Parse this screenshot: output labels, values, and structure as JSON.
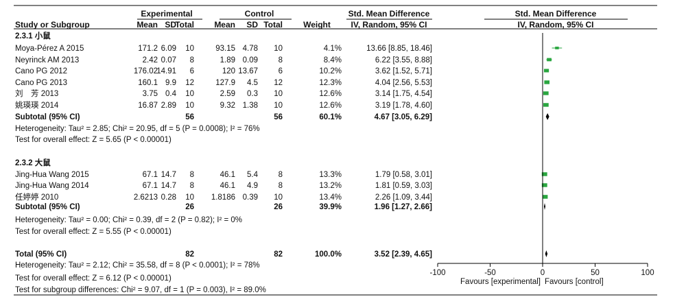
{
  "header": {
    "experimental": "Experimental",
    "control": "Control",
    "smd_text": "Std. Mean Difference",
    "smd_plot": "Std. Mean Difference",
    "study": "Study or Subgroup",
    "mean_e": "Mean",
    "sd_e": "SD",
    "total_e": "Total",
    "mean_c": "Mean",
    "sd_c": "SD",
    "total_c": "Total",
    "weight": "Weight",
    "method_text": "IV, Random, 95% CI",
    "method_plot": "IV, Random, 95% CI"
  },
  "subgroups": [
    {
      "title": "2.3.1 小鼠",
      "studies": [
        {
          "name": "Moya-Pérez A 2015",
          "mean_e": "171.2",
          "sd_e": "6.09",
          "n_e": "10",
          "mean_c": "93.15",
          "sd_c": "4.78",
          "n_c": "10",
          "weight": "4.1%",
          "ci_text": "13.66 [8.85, 18.46]",
          "est": 13.66,
          "lo": 8.85,
          "hi": 18.46,
          "w": 4.1
        },
        {
          "name": "Neyrinck AM 2013",
          "mean_e": "2.42",
          "sd_e": "0.07",
          "n_e": "8",
          "mean_c": "1.89",
          "sd_c": "0.09",
          "n_c": "8",
          "weight": "8.4%",
          "ci_text": "6.22 [3.55, 8.88]",
          "est": 6.22,
          "lo": 3.55,
          "hi": 8.88,
          "w": 8.4
        },
        {
          "name": "Cano PG 2012",
          "mean_e": "176.02",
          "sd_e": "14.91",
          "n_e": "6",
          "mean_c": "120",
          "sd_c": "13.67",
          "n_c": "6",
          "weight": "10.2%",
          "ci_text": "3.62 [1.52, 5.71]",
          "est": 3.62,
          "lo": 1.52,
          "hi": 5.71,
          "w": 10.2
        },
        {
          "name": "Cano PG 2013",
          "mean_e": "160.1",
          "sd_e": "9.9",
          "n_e": "12",
          "mean_c": "127.9",
          "sd_c": "4.5",
          "n_c": "12",
          "weight": "12.3%",
          "ci_text": "4.04 [2.56, 5.53]",
          "est": 4.04,
          "lo": 2.56,
          "hi": 5.53,
          "w": 12.3
        },
        {
          "name": "刘　芳 2013",
          "mean_e": "3.75",
          "sd_e": "0.4",
          "n_e": "10",
          "mean_c": "2.59",
          "sd_c": "0.3",
          "n_c": "10",
          "weight": "12.6%",
          "ci_text": "3.14 [1.75, 4.54]",
          "est": 3.14,
          "lo": 1.75,
          "hi": 4.54,
          "w": 12.6
        },
        {
          "name": "姚瑛瑛 2014",
          "mean_e": "16.87",
          "sd_e": "2.89",
          "n_e": "10",
          "mean_c": "9.32",
          "sd_c": "1.38",
          "n_c": "10",
          "weight": "12.6%",
          "ci_text": "3.19 [1.78, 4.60]",
          "est": 3.19,
          "lo": 1.78,
          "hi": 4.6,
          "w": 12.6
        }
      ],
      "subtotal": {
        "label": "Subtotal (95% CI)",
        "n_e": "56",
        "n_c": "56",
        "weight": "60.1%",
        "ci_text": "4.67 [3.05, 6.29]",
        "est": 4.67,
        "lo": 3.05,
        "hi": 6.29
      },
      "heterogeneity": "Heterogeneity: Tau² = 2.85; Chi² = 20.95, df = 5 (P = 0.0008); I² = 76%",
      "overall": "Test for overall effect: Z = 5.65 (P < 0.00001)"
    },
    {
      "title": "2.3.2 大鼠",
      "studies": [
        {
          "name": "Jing-Hua Wang  2015",
          "mean_e": "67.1",
          "sd_e": "14.7",
          "n_e": "8",
          "mean_c": "46.1",
          "sd_c": "5.4",
          "n_c": "8",
          "weight": "13.3%",
          "ci_text": "1.79 [0.58, 3.01]",
          "est": 1.79,
          "lo": 0.58,
          "hi": 3.01,
          "w": 13.3
        },
        {
          "name": "Jing-Hua Wang 2014",
          "mean_e": "67.1",
          "sd_e": "14.7",
          "n_e": "8",
          "mean_c": "46.1",
          "sd_c": "4.9",
          "n_c": "8",
          "weight": "13.2%",
          "ci_text": "1.81 [0.59, 3.03]",
          "est": 1.81,
          "lo": 0.59,
          "hi": 3.03,
          "w": 13.2
        },
        {
          "name": "任婷婷 2010",
          "mean_e": "2.6213",
          "sd_e": "0.28",
          "n_e": "10",
          "mean_c": "1.8186",
          "sd_c": "0.39",
          "n_c": "10",
          "weight": "13.4%",
          "ci_text": "2.26 [1.09, 3.44]",
          "est": 2.26,
          "lo": 1.09,
          "hi": 3.44,
          "w": 13.4
        }
      ],
      "subtotal": {
        "label": "Subtotal (95% CI)",
        "n_e": "26",
        "n_c": "26",
        "weight": "39.9%",
        "ci_text": "1.96 [1.27, 2.66]",
        "est": 1.96,
        "lo": 1.27,
        "hi": 2.66
      },
      "heterogeneity": "Heterogeneity: Tau² = 0.00; Chi² = 0.39, df = 2 (P = 0.82); I² = 0%",
      "overall": "Test for overall effect: Z = 5.55 (P < 0.00001)"
    }
  ],
  "total": {
    "label": "Total (95% CI)",
    "n_e": "82",
    "n_c": "82",
    "weight": "100.0%",
    "ci_text": "3.52 [2.39, 4.65]",
    "est": 3.52,
    "lo": 2.39,
    "hi": 4.65
  },
  "total_heterogeneity": "Heterogeneity: Tau² = 2.12; Chi² = 35.58, df = 8 (P < 0.0001); I² = 78%",
  "total_overall": "Test for overall effect: Z = 6.12 (P < 0.00001)",
  "subgroup_diff": "Test for subgroup differences: Chi² = 9.07, df = 1 (P = 0.003), I² = 89.0%",
  "chart_data": {
    "type": "scatter",
    "x_range": [
      -100,
      100
    ],
    "ticks": [
      -100,
      -50,
      0,
      50,
      100
    ],
    "tick_labels": [
      "-100",
      "-50",
      "0",
      "50",
      "100"
    ],
    "favours_left": "Favours [experimental]",
    "favours_right": "Favours [control]",
    "study_color": "#2aa640",
    "diamond_color": "#000000"
  }
}
